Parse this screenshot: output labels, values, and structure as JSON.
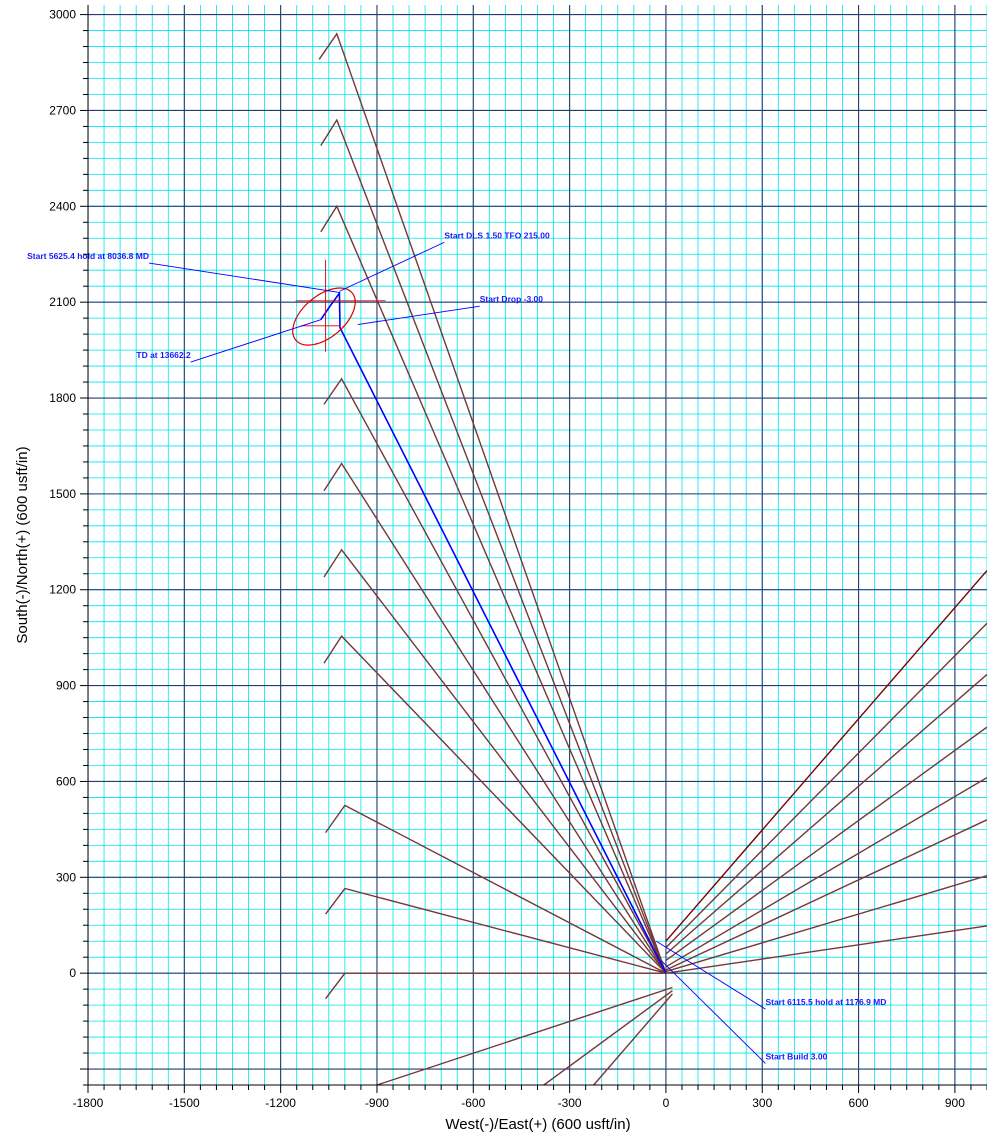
{
  "chart_data": {
    "type": "line",
    "title": "",
    "xlabel": "West(-)/East(+) (600 usft/in)",
    "ylabel": "South(-)/North(+) (600 usft/in)",
    "xlim": [
      -1800,
      1000
    ],
    "ylim": [
      -350,
      3030
    ],
    "x_ticks": [
      -1800,
      -1500,
      -1200,
      -900,
      -600,
      -300,
      0,
      300,
      600,
      900
    ],
    "y_ticks": [
      0,
      300,
      600,
      900,
      1200,
      1500,
      1800,
      2100,
      2400,
      2700,
      3000
    ],
    "grid": {
      "major_x": 300,
      "major_y": 300,
      "minor": 50
    },
    "colors": {
      "background": "#ffffff",
      "minor_grid": "#00e5ee",
      "major_grid": "#1f3f6e",
      "offset_wells": "#7a3535",
      "offset_well_dark": "#800000",
      "plan_well": "#0000ff",
      "target_ellipse": "#e00000",
      "annotation_text": "#1a1aff"
    },
    "series": [
      {
        "role": "plan",
        "color": "#0000ff",
        "points": [
          [
            0,
            0
          ],
          [
            -10,
            20
          ],
          [
            -1015,
            2020
          ],
          [
            -1017,
            2128
          ],
          [
            -1048,
            2085
          ],
          [
            -1075,
            2045
          ]
        ]
      },
      {
        "role": "offset",
        "color": "#7a3535",
        "points": [
          [
            0,
            0
          ],
          [
            -1025,
            2940
          ],
          [
            -1080,
            2860
          ]
        ]
      },
      {
        "role": "offset",
        "color": "#7a3535",
        "points": [
          [
            0,
            0
          ],
          [
            -1025,
            2670
          ],
          [
            -1075,
            2590
          ]
        ]
      },
      {
        "role": "offset",
        "color": "#7a3535",
        "points": [
          [
            0,
            0
          ],
          [
            -1025,
            2400
          ],
          [
            -1075,
            2320
          ]
        ]
      },
      {
        "role": "offset",
        "color": "#7a3535",
        "points": [
          [
            0,
            0
          ],
          [
            -1010,
            1860
          ],
          [
            -1065,
            1780
          ]
        ]
      },
      {
        "role": "offset",
        "color": "#7a3535",
        "points": [
          [
            0,
            0
          ],
          [
            -1010,
            1595
          ],
          [
            -1065,
            1510
          ]
        ]
      },
      {
        "role": "offset",
        "color": "#7a3535",
        "points": [
          [
            0,
            0
          ],
          [
            -1010,
            1325
          ],
          [
            -1065,
            1240
          ]
        ]
      },
      {
        "role": "offset",
        "color": "#7a3535",
        "points": [
          [
            0,
            0
          ],
          [
            -1010,
            1055
          ],
          [
            -1065,
            970
          ]
        ]
      },
      {
        "role": "offset",
        "color": "#7a3535",
        "points": [
          [
            0,
            0
          ],
          [
            -1000,
            525
          ],
          [
            -1060,
            440
          ]
        ]
      },
      {
        "role": "offset",
        "color": "#7a3535",
        "points": [
          [
            0,
            0
          ],
          [
            -1000,
            265
          ],
          [
            -1060,
            185
          ]
        ]
      },
      {
        "role": "offset",
        "color": "#7a3535",
        "points": [
          [
            0,
            0
          ],
          [
            -1000,
            0
          ],
          [
            -1060,
            -80
          ]
        ]
      },
      {
        "role": "offset",
        "color": "#7a3535",
        "points": [
          [
            20,
            -45
          ],
          [
            -900,
            -350
          ]
        ]
      },
      {
        "role": "offset",
        "color": "#7a3535",
        "points": [
          [
            20,
            -55
          ],
          [
            -380,
            -350
          ]
        ]
      },
      {
        "role": "offset",
        "color": "#7a3535",
        "points": [
          [
            20,
            -65
          ],
          [
            -225,
            -350
          ]
        ]
      },
      {
        "role": "offset",
        "color": "#800000",
        "points": [
          [
            0,
            100
          ],
          [
            1000,
            1260
          ]
        ]
      },
      {
        "role": "offset",
        "color": "#7a3535",
        "points": [
          [
            0,
            80
          ],
          [
            1000,
            1095
          ]
        ]
      },
      {
        "role": "offset",
        "color": "#7a3535",
        "points": [
          [
            0,
            60
          ],
          [
            1000,
            935
          ]
        ]
      },
      {
        "role": "offset",
        "color": "#7a3535",
        "points": [
          [
            0,
            40
          ],
          [
            1000,
            770
          ]
        ]
      },
      {
        "role": "offset",
        "color": "#7a3535",
        "points": [
          [
            0,
            20
          ],
          [
            1000,
            612
          ]
        ]
      },
      {
        "role": "offset",
        "color": "#7a3535",
        "points": [
          [
            0,
            10
          ],
          [
            1000,
            480
          ]
        ]
      },
      {
        "role": "offset",
        "color": "#7a3535",
        "points": [
          [
            0,
            5
          ],
          [
            1000,
            305
          ]
        ]
      },
      {
        "role": "offset",
        "color": "#7a3535",
        "points": [
          [
            0,
            0
          ],
          [
            1000,
            148
          ]
        ]
      }
    ],
    "target": {
      "center": [
        -1065,
        2055
      ],
      "radius_x": 65,
      "radius_y": 115,
      "rotation_deg": 50,
      "cross": [
        -1060,
        2120
      ]
    },
    "annotations": [
      {
        "text": "Start DLS 1.50 TFO 215.00",
        "at": [
          -1015,
          2135
        ],
        "label_at": [
          -690,
          2300
        ]
      },
      {
        "text": "Start 5625.4 hold at 8036.8 MD",
        "at": [
          -1015,
          2130
        ],
        "label_at": [
          -1610,
          2235
        ]
      },
      {
        "text": "Start Drop -3.00",
        "at": [
          -960,
          2030
        ],
        "label_at": [
          -580,
          2100
        ]
      },
      {
        "text": "TD at 13662.2",
        "at": [
          -1075,
          2045
        ],
        "label_at": [
          -1480,
          1925
        ]
      },
      {
        "text": "Start 6115.5 hold at 1176.9 MD",
        "at": [
          -30,
          100
        ],
        "label_at": [
          310,
          -100
        ]
      },
      {
        "text": "Start Build 3.00",
        "at": [
          -15,
          40
        ],
        "label_at": [
          310,
          -270
        ]
      }
    ]
  }
}
